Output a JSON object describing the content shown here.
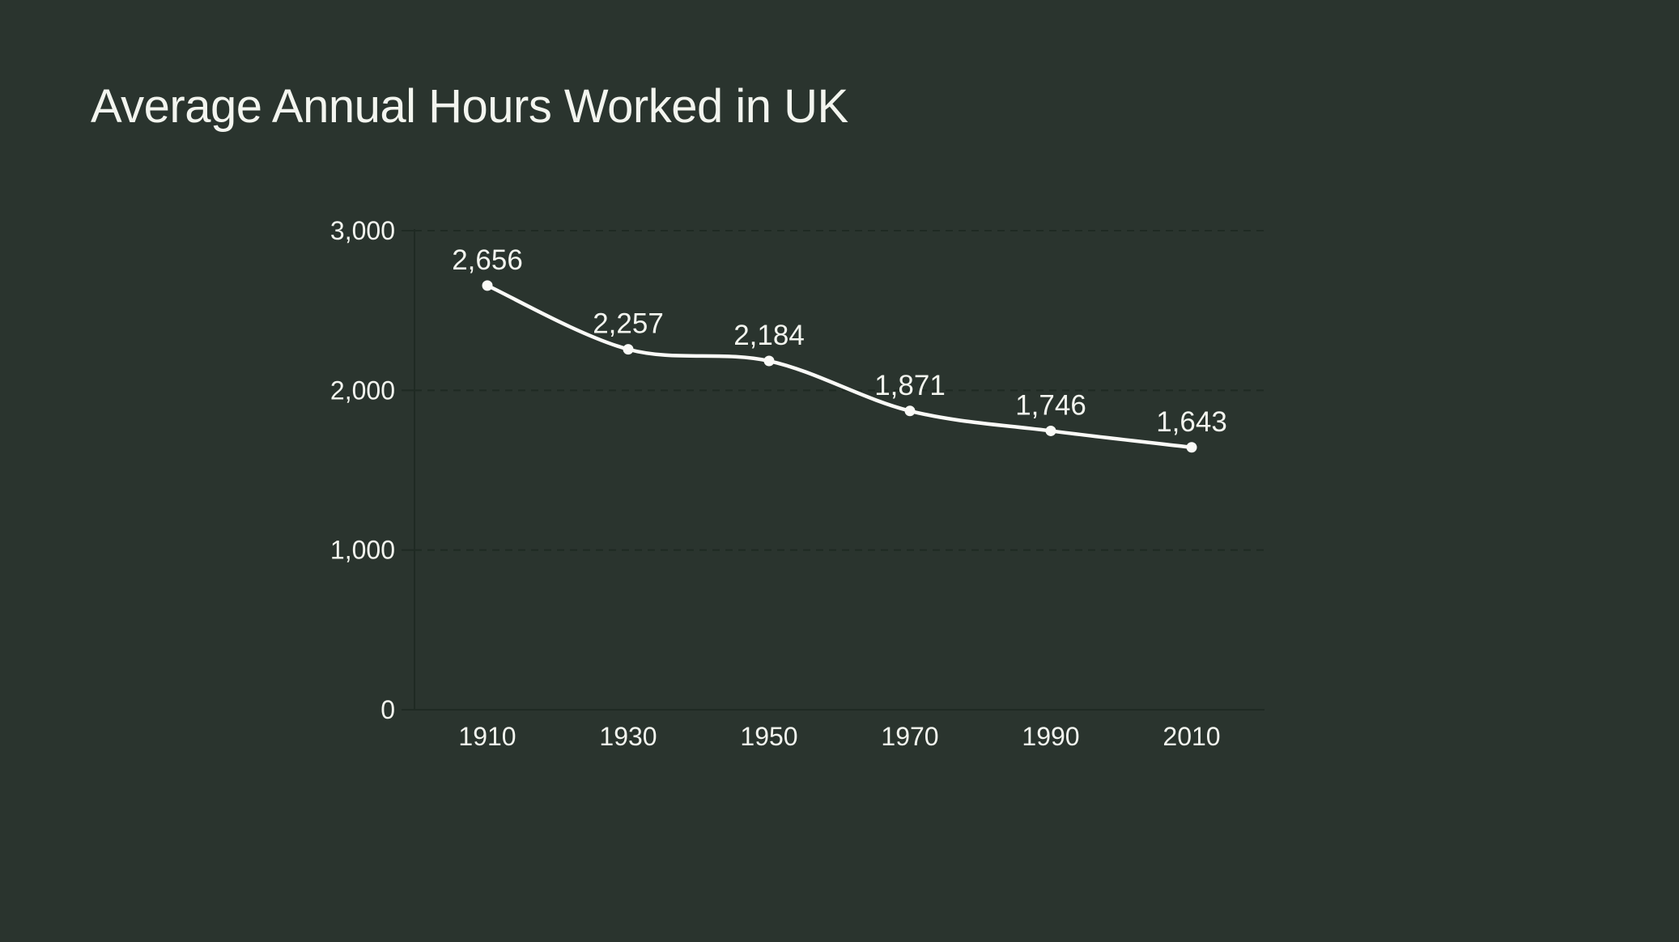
{
  "title": "Average Annual Hours Worked in UK",
  "colors": {
    "background": "#2a342e",
    "text": "#f3f5ef",
    "line": "#fafaf7",
    "point": "#fafaf7",
    "grid": "#1f2a23",
    "axis": "#1f2a23"
  },
  "chart_data": {
    "type": "line",
    "title": "Average Annual Hours Worked in UK",
    "categories": [
      "1910",
      "1930",
      "1950",
      "1970",
      "1990",
      "2010"
    ],
    "values": [
      2656,
      2257,
      2184,
      1871,
      1746,
      1643
    ],
    "data_labels": [
      "2,656",
      "2,257",
      "2,184",
      "1,871",
      "1,746",
      "1,643"
    ],
    "xlabel": "",
    "ylabel": "",
    "ylim": [
      0,
      3000
    ],
    "yticks": [
      0,
      1000,
      2000,
      3000
    ],
    "ytick_labels": [
      "0",
      "1,000",
      "2,000",
      "3,000"
    ],
    "grid": "horizontal-dashed",
    "legend": "none",
    "marker": "filled-circle",
    "line_style": "smooth"
  }
}
